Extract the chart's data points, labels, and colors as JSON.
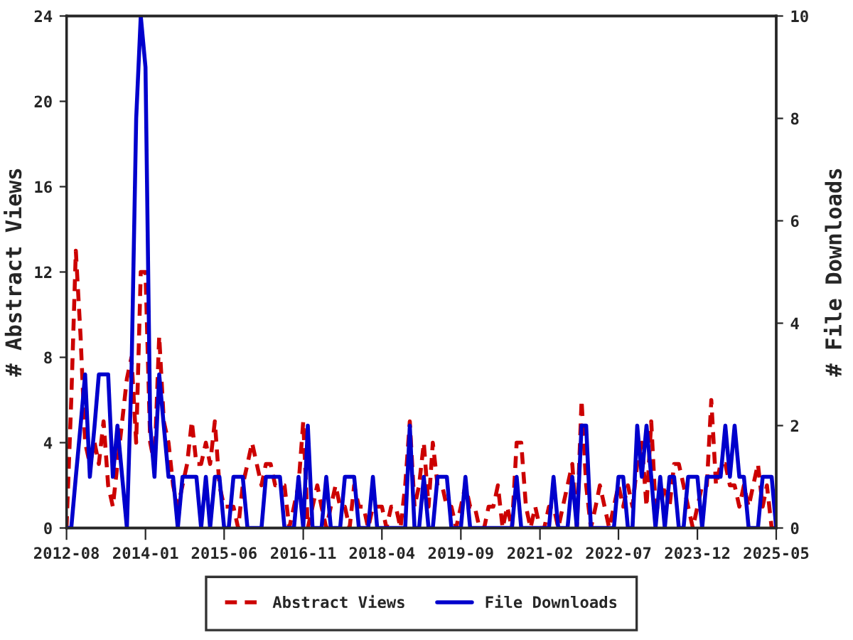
{
  "chart_data": {
    "type": "line",
    "ylabel": "# Abstract Views",
    "y2label": "# File Downloads",
    "x": [
      "2012-08",
      "2012-09",
      "2012-10",
      "2012-11",
      "2012-12",
      "2013-01",
      "2013-02",
      "2013-03",
      "2013-04",
      "2013-05",
      "2013-06",
      "2013-07",
      "2013-08",
      "2013-09",
      "2013-10",
      "2013-11",
      "2013-12",
      "2014-01",
      "2014-02",
      "2014-03",
      "2014-04",
      "2014-05",
      "2014-06",
      "2014-07",
      "2014-08",
      "2014-09",
      "2014-10",
      "2014-11",
      "2014-12",
      "2015-01",
      "2015-02",
      "2015-03",
      "2015-04",
      "2015-05",
      "2015-06",
      "2015-07",
      "2015-08",
      "2015-09",
      "2015-10",
      "2015-11",
      "2015-12",
      "2016-01",
      "2016-02",
      "2016-03",
      "2016-04",
      "2016-05",
      "2016-06",
      "2016-07",
      "2016-08",
      "2016-09",
      "2016-10",
      "2016-11",
      "2016-12",
      "2017-01",
      "2017-02",
      "2017-03",
      "2017-04",
      "2017-05",
      "2017-06",
      "2017-07",
      "2017-08",
      "2017-09",
      "2017-10",
      "2017-11",
      "2017-12",
      "2018-01",
      "2018-02",
      "2018-03",
      "2018-04",
      "2018-05",
      "2018-06",
      "2018-07",
      "2018-08",
      "2018-09",
      "2018-10",
      "2018-11",
      "2018-12",
      "2019-01",
      "2019-02",
      "2019-03",
      "2019-04",
      "2019-05",
      "2019-06",
      "2019-07",
      "2019-08",
      "2019-09",
      "2019-10",
      "2019-11",
      "2019-12",
      "2020-01",
      "2020-02",
      "2020-03",
      "2020-04",
      "2020-05",
      "2020-06",
      "2020-07",
      "2020-08",
      "2020-09",
      "2020-10",
      "2020-11",
      "2020-12",
      "2021-01",
      "2021-02",
      "2021-03",
      "2021-04",
      "2021-05",
      "2021-06",
      "2021-07",
      "2021-08",
      "2021-09",
      "2021-10",
      "2021-11",
      "2021-12",
      "2022-01",
      "2022-02",
      "2022-03",
      "2022-04",
      "2022-05",
      "2022-06",
      "2022-07",
      "2022-08",
      "2022-09",
      "2022-10",
      "2022-11",
      "2022-12",
      "2023-01",
      "2023-02",
      "2023-03",
      "2023-04",
      "2023-05",
      "2023-06",
      "2023-07",
      "2023-08",
      "2023-09",
      "2023-10",
      "2023-11",
      "2023-12",
      "2024-01",
      "2024-02",
      "2024-03",
      "2024-04",
      "2024-05",
      "2024-06",
      "2024-07",
      "2024-08",
      "2024-09",
      "2024-10",
      "2024-11",
      "2024-12",
      "2025-01",
      "2025-02",
      "2025-03",
      "2025-04",
      "2025-05"
    ],
    "xlim": [
      "2012-08",
      "2025-05"
    ],
    "xticks": [
      "2012-08",
      "2014-01",
      "2015-06",
      "2016-11",
      "2018-04",
      "2019-09",
      "2021-02",
      "2022-07",
      "2023-12",
      "2025-05"
    ],
    "ylim": [
      0,
      24
    ],
    "yticks": [
      0,
      4,
      8,
      12,
      16,
      20,
      24
    ],
    "y2lim": [
      0,
      10
    ],
    "y2ticks": [
      0,
      2,
      4,
      6,
      8,
      10
    ],
    "grid": false,
    "legend": "bottom",
    "marker": "none",
    "series": [
      {
        "name": "Abstract Views",
        "color": "#cc0000",
        "line_style": "dashed",
        "values": [
          0,
          6,
          13,
          9,
          4,
          3,
          4,
          3,
          5,
          2,
          1,
          3,
          5,
          7,
          8,
          4,
          12,
          12,
          4,
          3,
          9,
          5,
          4,
          2,
          1,
          2,
          3,
          5,
          3,
          3,
          4,
          3,
          5,
          2,
          1,
          1,
          1,
          0,
          2,
          3,
          4,
          3,
          2,
          3,
          3,
          2,
          2,
          2,
          0,
          1,
          2,
          5,
          0,
          1,
          2,
          1,
          0,
          1,
          2,
          1,
          1,
          0,
          2,
          1,
          1,
          0,
          1,
          1,
          1,
          0,
          1,
          1,
          0,
          2,
          5,
          1,
          2,
          4,
          1,
          4,
          2,
          2,
          1,
          1,
          0,
          1,
          2,
          1,
          1,
          0,
          0,
          1,
          1,
          2,
          0,
          1,
          0,
          4,
          4,
          1,
          0,
          1,
          0,
          0,
          1,
          1,
          0,
          1,
          2,
          3,
          0,
          6,
          2,
          0,
          1,
          2,
          1,
          0,
          1,
          2,
          1,
          2,
          1,
          3,
          4,
          1,
          5,
          1,
          1,
          2,
          1,
          3,
          3,
          2,
          1,
          0,
          1,
          2,
          2,
          6,
          2,
          3,
          3,
          2,
          2,
          1,
          2,
          1,
          2,
          3,
          1,
          2,
          0,
          0
        ]
      },
      {
        "name": "File Downloads",
        "color": "#0000cc",
        "line_style": "solid",
        "axis": "y2",
        "values": [
          0,
          0,
          1,
          2,
          3,
          1,
          2,
          3,
          3,
          3,
          1,
          2,
          1,
          0,
          3,
          8,
          10,
          9,
          2,
          1,
          3,
          2,
          1,
          1,
          0,
          1,
          1,
          1,
          1,
          0,
          1,
          0,
          1,
          1,
          0,
          0,
          1,
          1,
          1,
          0,
          0,
          0,
          0,
          1,
          1,
          1,
          1,
          0,
          0,
          0,
          1,
          0,
          2,
          0,
          0,
          0,
          1,
          0,
          0,
          0,
          1,
          1,
          1,
          0,
          0,
          0,
          1,
          0,
          0,
          0,
          0,
          0,
          0,
          0,
          2,
          0,
          0,
          1,
          0,
          0,
          1,
          1,
          1,
          0,
          0,
          0,
          1,
          0,
          0,
          0,
          0,
          0,
          0,
          0,
          0,
          0,
          0,
          1,
          0,
          0,
          0,
          0,
          0,
          0,
          0,
          1,
          0,
          0,
          0,
          1,
          0,
          2,
          2,
          0,
          0,
          0,
          0,
          0,
          0,
          1,
          1,
          0,
          0,
          2,
          1,
          2,
          1,
          0,
          1,
          0,
          1,
          1,
          0,
          0,
          1,
          1,
          1,
          0,
          1,
          1,
          1,
          1,
          2,
          1,
          2,
          1,
          1,
          0,
          0,
          0,
          1,
          1,
          1,
          0
        ]
      }
    ]
  }
}
